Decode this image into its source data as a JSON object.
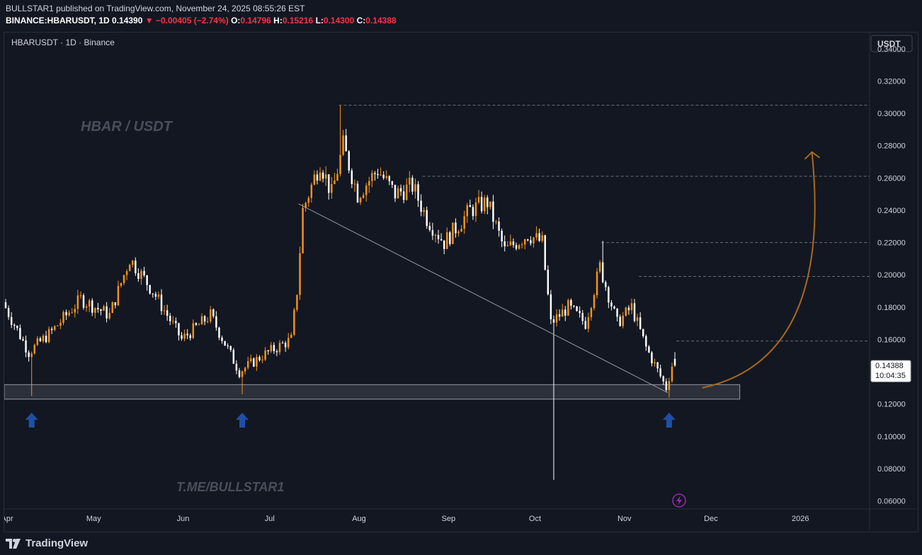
{
  "header": {
    "line1": "BULLSTAR1 published on TradingView.com, November 24, 2025 08:55:26 EST",
    "symbol": "BINANCE:HBARUSDT, 1D",
    "last": "0.14390",
    "change": "−0.00405 (−2.74%)",
    "o_label": "O:",
    "o_value": "0.14796",
    "h_label": "H:",
    "h_value": "0.15216",
    "l_label": "L:",
    "l_value": "0.14300",
    "c_label": "C:",
    "c_value": "0.14388"
  },
  "chart_title": "HBARUSDT · 1D · Binance",
  "currency_button": "USDT",
  "watermark_title": "HBAR / USDT",
  "watermark_link": "T.ME/BULLSTAR1",
  "price_label": "0.14388",
  "countdown": "10:04:35",
  "footer_brand": "TradingView",
  "colors": {
    "up": "#f7931a",
    "down": "#ffffff",
    "arrow": "#1e4fa8",
    "curve": "#a8691c",
    "background": "#131722"
  },
  "icons": [
    "up-arrow-icon",
    "lightning-icon",
    "tradingview-logo-icon",
    "curved-arrow-icon"
  ],
  "chart_data": {
    "type": "candlestick",
    "title": "HBAR / USDT",
    "symbol": "HBARUSDT",
    "interval": "1D",
    "exchange": "Binance",
    "y_axis": {
      "min": 0.055,
      "max": 0.35,
      "ticks": [
        "0.06000",
        "0.08000",
        "0.10000",
        "0.12000",
        "0.14000",
        "0.16000",
        "0.18000",
        "0.20000",
        "0.22000",
        "0.24000",
        "0.26000",
        "0.28000",
        "0.30000",
        "0.32000",
        "0.34000"
      ]
    },
    "x_axis": {
      "labels": [
        {
          "label": "Apr",
          "day": 1
        },
        {
          "label": "May",
          "day": 31
        },
        {
          "label": "Jun",
          "day": 62
        },
        {
          "label": "Jul",
          "day": 92
        },
        {
          "label": "Aug",
          "day": 123
        },
        {
          "label": "Sep",
          "day": 154
        },
        {
          "label": "Oct",
          "day": 184
        },
        {
          "label": "Nov",
          "day": 215
        },
        {
          "label": "Dec",
          "day": 245
        },
        {
          "label": "2026",
          "day": 276
        }
      ],
      "start_date": "2025-03-31"
    },
    "anchors": [
      {
        "day": 0,
        "price": 0.183
      },
      {
        "day": 9,
        "price": 0.152
      },
      {
        "day": 17,
        "price": 0.165
      },
      {
        "day": 27,
        "price": 0.185
      },
      {
        "day": 37,
        "price": 0.175
      },
      {
        "day": 44,
        "price": 0.21
      },
      {
        "day": 52,
        "price": 0.19
      },
      {
        "day": 62,
        "price": 0.16
      },
      {
        "day": 72,
        "price": 0.175
      },
      {
        "day": 82,
        "price": 0.14
      },
      {
        "day": 90,
        "price": 0.15
      },
      {
        "day": 100,
        "price": 0.16
      },
      {
        "day": 102,
        "price": 0.19
      },
      {
        "day": 104,
        "price": 0.24
      },
      {
        "day": 110,
        "price": 0.27
      },
      {
        "day": 114,
        "price": 0.25
      },
      {
        "day": 118,
        "price": 0.28
      },
      {
        "day": 123,
        "price": 0.25
      },
      {
        "day": 130,
        "price": 0.265
      },
      {
        "day": 136,
        "price": 0.25
      },
      {
        "day": 142,
        "price": 0.255
      },
      {
        "day": 147,
        "price": 0.235
      },
      {
        "day": 153,
        "price": 0.22
      },
      {
        "day": 162,
        "price": 0.24
      },
      {
        "day": 168,
        "price": 0.245
      },
      {
        "day": 174,
        "price": 0.215
      },
      {
        "day": 182,
        "price": 0.225
      },
      {
        "day": 187,
        "price": 0.22
      },
      {
        "day": 190,
        "price": 0.17
      },
      {
        "day": 196,
        "price": 0.18
      },
      {
        "day": 202,
        "price": 0.17
      },
      {
        "day": 207,
        "price": 0.205
      },
      {
        "day": 213,
        "price": 0.17
      },
      {
        "day": 218,
        "price": 0.18
      },
      {
        "day": 223,
        "price": 0.155
      },
      {
        "day": 230,
        "price": 0.13
      },
      {
        "day": 232,
        "price": 0.1439
      }
    ],
    "key_candles": [
      {
        "day": 9,
        "low": 0.125
      },
      {
        "day": 82,
        "low": 0.126
      },
      {
        "day": 116,
        "high": 0.305
      },
      {
        "day": 190,
        "low": 0.073
      },
      {
        "day": 207,
        "high": 0.221
      },
      {
        "day": 230,
        "low": 0.124
      },
      {
        "day": 232,
        "open": 0.14796,
        "high": 0.15216,
        "low": 0.143,
        "close": 0.14388
      }
    ],
    "support_zone": {
      "low": 0.123,
      "high": 0.132,
      "start_day": 0,
      "end_day": 255
    },
    "trendline": {
      "start": {
        "day": 102,
        "price": 0.244
      },
      "end": {
        "day": 230,
        "price": 0.127
      }
    },
    "horizontal_levels": [
      {
        "price": 0.305,
        "start_day": 116
      },
      {
        "price": 0.261,
        "start_day": 145
      },
      {
        "price": 0.22,
        "start_day": 207
      },
      {
        "price": 0.199,
        "start_day": 220
      },
      {
        "price": 0.159,
        "start_day": 233
      }
    ],
    "up_arrows_days": [
      9,
      82,
      230
    ],
    "projection_curve": {
      "from": {
        "day": 242,
        "price": 0.13
      },
      "to": {
        "day": 280,
        "price": 0.276
      }
    },
    "last_price": 0.14388
  }
}
